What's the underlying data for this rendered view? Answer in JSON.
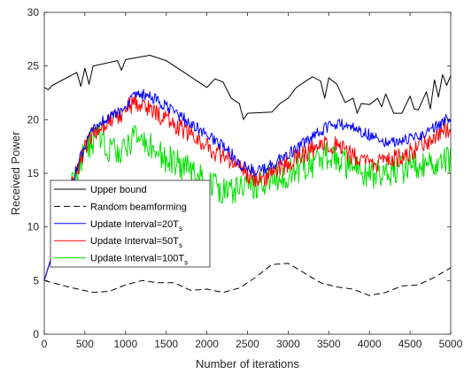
{
  "chart_data": {
    "type": "line",
    "xlabel": "Number of iterations",
    "ylabel": "Received Power",
    "xlim": [
      0,
      5000
    ],
    "ylim": [
      0,
      30
    ],
    "xticks": [
      0,
      500,
      1000,
      1500,
      2000,
      2500,
      3000,
      3500,
      4000,
      4500,
      5000
    ],
    "yticks": [
      0,
      5,
      10,
      15,
      20,
      25,
      30
    ],
    "grid": false,
    "legend_position": "left",
    "series": [
      {
        "name": "Upper bound",
        "color": "#000000",
        "dash": "solid",
        "noise": 0,
        "x": [
          0,
          50,
          100,
          300,
          400,
          450,
          500,
          550,
          600,
          900,
          950,
          1000,
          1300,
          1500,
          1700,
          2000,
          2100,
          2200,
          2300,
          2400,
          2450,
          2500,
          2800,
          2900,
          3000,
          3100,
          3300,
          3400,
          3450,
          3500,
          3550,
          3600,
          3700,
          3800,
          3850,
          3900,
          4000,
          4100,
          4150,
          4200,
          4300,
          4400,
          4500,
          4550,
          4600,
          4700,
          4750,
          4800,
          4850,
          4900,
          4950,
          5000
        ],
        "y": [
          23.0,
          22.8,
          23.2,
          24.0,
          24.4,
          23.1,
          24.8,
          23.3,
          25.0,
          25.5,
          24.6,
          25.6,
          26.0,
          25.5,
          24.5,
          23.0,
          23.8,
          23.5,
          22.0,
          21.5,
          20.0,
          20.6,
          20.7,
          21.5,
          22.0,
          23.0,
          24.0,
          23.6,
          22.0,
          23.9,
          23.6,
          23.3,
          21.6,
          22.0,
          20.6,
          21.5,
          21.4,
          22.0,
          21.2,
          22.4,
          20.6,
          20.6,
          22.2,
          21.0,
          20.9,
          22.6,
          21.0,
          23.7,
          22.1,
          24.2,
          23.2,
          24.1
        ]
      },
      {
        "name": "Random beamforming",
        "color": "#000000",
        "dash": "dashed",
        "noise": 0,
        "x": [
          0,
          300,
          600,
          800,
          1000,
          1200,
          1400,
          1600,
          1800,
          2000,
          2200,
          2400,
          2600,
          2800,
          3000,
          3200,
          3400,
          3600,
          3800,
          4000,
          4200,
          4400,
          4600,
          4800,
          5000
        ],
        "y": [
          5.0,
          4.4,
          3.9,
          4.0,
          4.6,
          5.0,
          4.8,
          4.8,
          4.1,
          4.2,
          3.9,
          4.3,
          5.3,
          6.5,
          6.6,
          5.7,
          4.8,
          4.4,
          4.2,
          3.6,
          3.9,
          4.5,
          4.6,
          5.3,
          6.2
        ]
      },
      {
        "name": "Update Interval=20T",
        "name_subscript": "s",
        "color": "#0000ff",
        "dash": "solid",
        "noise": 0.35,
        "x": [
          0,
          100,
          200,
          300,
          400,
          500,
          600,
          700,
          800,
          900,
          1000,
          1100,
          1200,
          1300,
          1400,
          1500,
          1600,
          1700,
          1800,
          1900,
          2000,
          2100,
          2200,
          2300,
          2400,
          2500,
          2600,
          2700,
          2800,
          2900,
          3000,
          3100,
          3200,
          3300,
          3400,
          3500,
          3600,
          3700,
          3800,
          3900,
          4000,
          4100,
          4200,
          4300,
          4400,
          4500,
          4600,
          4700,
          4800,
          4900,
          5000
        ],
        "y": [
          5.0,
          7.5,
          10.5,
          13.0,
          15.5,
          17.5,
          19.0,
          19.8,
          20.3,
          20.5,
          21.3,
          22.0,
          22.3,
          22.1,
          21.7,
          21.2,
          20.7,
          20.2,
          19.6,
          19.1,
          18.6,
          18.1,
          17.5,
          16.8,
          16.0,
          15.4,
          15.2,
          15.3,
          15.8,
          16.3,
          16.8,
          17.3,
          17.8,
          18.3,
          18.9,
          19.4,
          19.6,
          19.5,
          19.3,
          18.9,
          18.6,
          18.3,
          18.0,
          17.9,
          18.0,
          18.2,
          18.5,
          18.8,
          19.3,
          19.8,
          20.2
        ]
      },
      {
        "name": "Update Interval=50T",
        "name_subscript": "s",
        "color": "#ff0000",
        "dash": "solid",
        "noise": 0.55,
        "x": [
          0,
          100,
          200,
          300,
          400,
          500,
          600,
          700,
          800,
          900,
          1000,
          1100,
          1200,
          1300,
          1400,
          1500,
          1600,
          1700,
          1800,
          1900,
          2000,
          2100,
          2200,
          2300,
          2400,
          2500,
          2600,
          2700,
          2800,
          2900,
          3000,
          3100,
          3200,
          3300,
          3400,
          3500,
          3600,
          3700,
          3800,
          3900,
          4000,
          4100,
          4200,
          4300,
          4400,
          4500,
          4600,
          4700,
          4800,
          4900,
          5000
        ],
        "y": [
          5.0,
          7.5,
          10.5,
          13.0,
          15.3,
          17.3,
          18.6,
          19.5,
          19.9,
          20.3,
          21.0,
          21.6,
          21.5,
          21.0,
          20.5,
          20.1,
          19.6,
          19.1,
          18.6,
          18.1,
          17.6,
          17.0,
          16.6,
          16.1,
          15.6,
          15.0,
          14.6,
          14.6,
          15.0,
          15.4,
          15.9,
          16.4,
          16.8,
          17.1,
          17.4,
          17.8,
          17.5,
          17.0,
          16.6,
          16.2,
          16.0,
          15.9,
          16.0,
          16.3,
          16.6,
          17.0,
          17.4,
          17.9,
          18.5,
          19.0,
          19.3
        ]
      },
      {
        "name": "Update Interval=100T",
        "name_subscript": "s",
        "color": "#00e000",
        "dash": "solid",
        "noise": 0.85,
        "x": [
          0,
          100,
          200,
          300,
          400,
          500,
          600,
          700,
          800,
          900,
          1000,
          1100,
          1200,
          1300,
          1400,
          1500,
          1600,
          1700,
          1800,
          1900,
          2000,
          2100,
          2200,
          2300,
          2400,
          2500,
          2600,
          2700,
          2800,
          2900,
          3000,
          3100,
          3200,
          3300,
          3400,
          3500,
          3600,
          3700,
          3800,
          3900,
          4000,
          4100,
          4200,
          4300,
          4400,
          4500,
          4600,
          4700,
          4800,
          4900,
          5000
        ],
        "y": [
          5.0,
          7.5,
          10.5,
          13.0,
          15.0,
          17.2,
          18.0,
          18.5,
          17.2,
          16.8,
          17.5,
          18.2,
          18.0,
          17.5,
          17.0,
          16.4,
          16.0,
          15.6,
          15.2,
          14.8,
          14.3,
          13.8,
          13.2,
          13.4,
          13.6,
          13.8,
          14.0,
          14.2,
          14.5,
          14.8,
          15.0,
          15.3,
          15.6,
          15.9,
          16.2,
          16.6,
          16.4,
          15.9,
          15.4,
          15.1,
          15.0,
          14.9,
          14.9,
          15.1,
          15.3,
          15.5,
          15.7,
          15.9,
          16.1,
          16.3,
          16.2
        ]
      }
    ]
  }
}
